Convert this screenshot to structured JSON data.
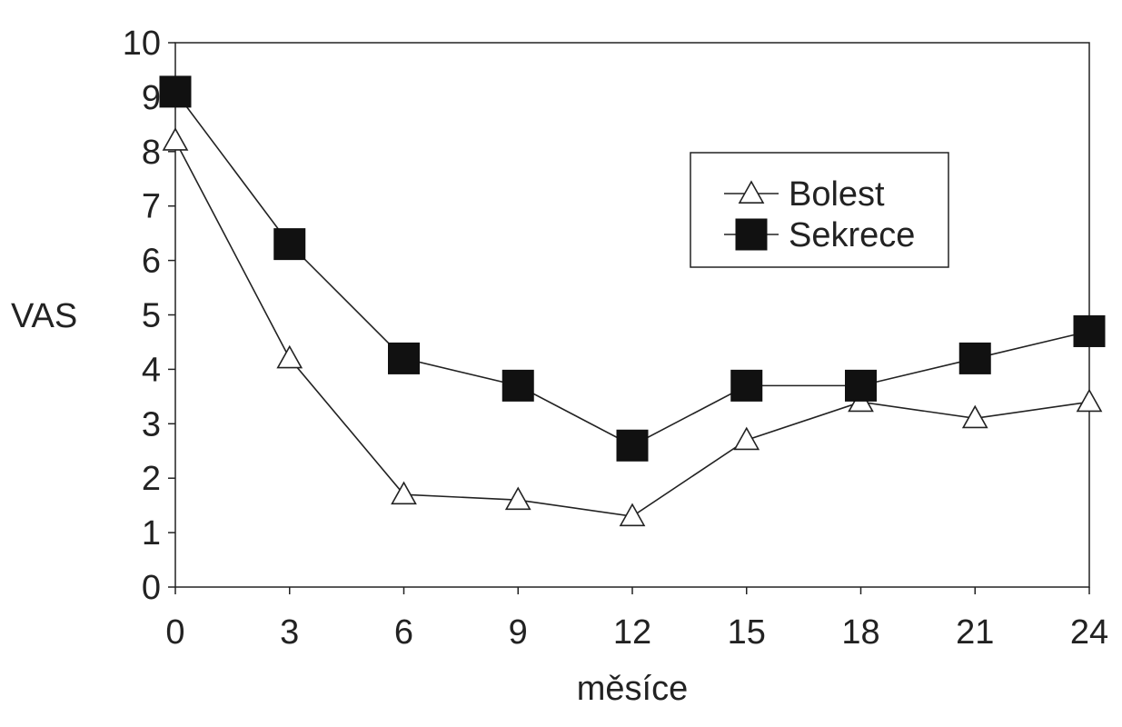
{
  "chart_data": {
    "type": "line",
    "title": "",
    "xlabel": "měsíce",
    "ylabel": "VAS",
    "x": [
      0,
      3,
      6,
      9,
      12,
      15,
      18,
      21,
      24
    ],
    "x_tick_labels": [
      "0",
      "3",
      "6",
      "9",
      "12",
      "15",
      "18",
      "21",
      "24"
    ],
    "y_tick_labels": [
      "0",
      "1",
      "2",
      "3",
      "4",
      "5",
      "6",
      "7",
      "8",
      "9",
      "10"
    ],
    "xlim": [
      0,
      24
    ],
    "ylim": [
      0,
      10
    ],
    "grid": false,
    "legend_position": "top-right",
    "series": [
      {
        "name": "Bolest",
        "marker": "open-triangle",
        "color": "#222222",
        "values": [
          8.2,
          4.2,
          1.7,
          1.6,
          1.3,
          2.7,
          3.4,
          3.1,
          3.4
        ]
      },
      {
        "name": "Sekrece",
        "marker": "filled-square",
        "color": "#222222",
        "values": [
          9.1,
          6.3,
          4.2,
          3.7,
          2.6,
          3.7,
          3.7,
          4.2,
          4.7
        ]
      }
    ]
  }
}
